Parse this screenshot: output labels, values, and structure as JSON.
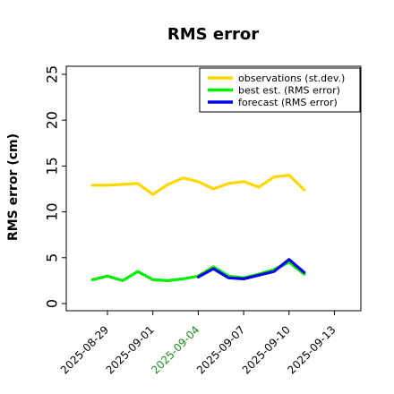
{
  "chart_data": {
    "type": "line",
    "title": "RMS error",
    "ylabel": "RMS error (cm)",
    "xlabel": "",
    "ylim": [
      0,
      25
    ],
    "yticks": [
      0,
      5,
      10,
      15,
      20,
      25
    ],
    "xticks": [
      "2025-08-29",
      "2025-09-01",
      "2025-09-04",
      "2025-09-07",
      "2025-09-10",
      "2025-09-13"
    ],
    "highlight_tick": "2025-09-04",
    "highlight_color": "#228B22",
    "legend_position": "top-right",
    "grid": false,
    "series": [
      {
        "name": "observations (st.dev.)",
        "color": "#FFD700",
        "x": [
          "2025-08-28",
          "2025-08-29",
          "2025-08-30",
          "2025-08-31",
          "2025-09-01",
          "2025-09-02",
          "2025-09-03",
          "2025-09-04",
          "2025-09-05",
          "2025-09-06",
          "2025-09-07",
          "2025-09-08",
          "2025-09-09",
          "2025-09-10",
          "2025-09-11"
        ],
        "values": [
          12.9,
          12.9,
          13.0,
          13.1,
          11.9,
          13.0,
          13.7,
          13.3,
          12.5,
          13.1,
          13.3,
          12.7,
          13.8,
          14.0,
          12.4
        ]
      },
      {
        "name": "best est. (RMS error)",
        "color": "#00EE00",
        "x": [
          "2025-08-28",
          "2025-08-29",
          "2025-08-30",
          "2025-08-31",
          "2025-09-01",
          "2025-09-02",
          "2025-09-03",
          "2025-09-04",
          "2025-09-05",
          "2025-09-06",
          "2025-09-07",
          "2025-09-08",
          "2025-09-09",
          "2025-09-10",
          "2025-09-11"
        ],
        "values": [
          2.6,
          3.0,
          2.5,
          3.5,
          2.6,
          2.5,
          2.7,
          3.0,
          4.0,
          3.0,
          2.8,
          3.2,
          3.7,
          4.5,
          3.2
        ]
      },
      {
        "name": "forecast (RMS error)",
        "color": "#0000EE",
        "x": [
          "2025-09-04",
          "2025-09-05",
          "2025-09-06",
          "2025-09-07",
          "2025-09-08",
          "2025-09-09",
          "2025-09-10",
          "2025-09-11"
        ],
        "values": [
          2.9,
          3.8,
          2.8,
          2.7,
          3.1,
          3.5,
          4.8,
          3.4
        ]
      }
    ]
  }
}
